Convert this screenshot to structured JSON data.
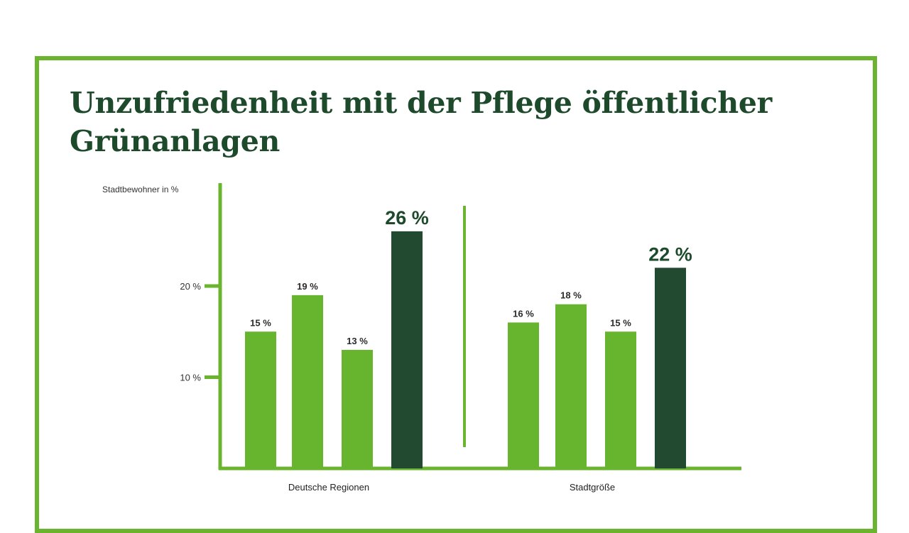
{
  "colors": {
    "frame": "#6ab42f",
    "bar_light": "#67b42f",
    "bar_dark": "#224a30",
    "title": "#1e4a2c",
    "axis": "#6ab42f"
  },
  "chart_data": {
    "type": "bar",
    "title": "Unzufriedenheit mit der Pflege öffentlicher Grünanlagen",
    "ylabel": "Stadtbewohner in %",
    "ylim": [
      0,
      30
    ],
    "yticks": [
      {
        "value": 10,
        "label": "10 %"
      },
      {
        "value": 20,
        "label": "20 %"
      }
    ],
    "groups": [
      {
        "name": "Deutsche Regionen",
        "values": [
          15,
          19,
          13,
          26
        ],
        "labels": [
          "15 %",
          "19 %",
          "13 %",
          "26 %"
        ],
        "highlight_index": 3
      },
      {
        "name": "Stadtgröße",
        "values": [
          16,
          18,
          15,
          22
        ],
        "labels": [
          "16 %",
          "18 %",
          "15 %",
          "22 %"
        ],
        "highlight_index": 3
      }
    ],
    "grid": false,
    "legend": "none"
  }
}
